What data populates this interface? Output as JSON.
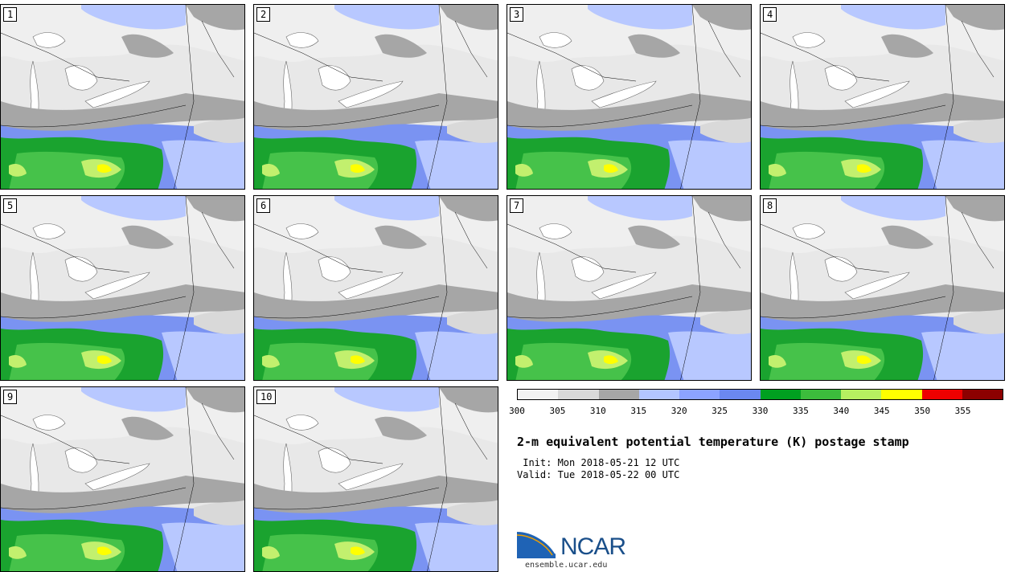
{
  "panels": [
    "1",
    "2",
    "3",
    "4",
    "5",
    "6",
    "7",
    "8",
    "9",
    "10"
  ],
  "colorbar": {
    "colors": [
      "#f2f2f2",
      "#d9d9d9",
      "#a6a6a6",
      "#b3c6ff",
      "#8ca3ff",
      "#6b88f0",
      "#00a020",
      "#3cbc3c",
      "#b6f060",
      "#ffff00",
      "#ee0000",
      "#8c0000"
    ],
    "ticks": [
      "300",
      "305",
      "310",
      "315",
      "320",
      "325",
      "330",
      "335",
      "340",
      "345",
      "350",
      "355"
    ]
  },
  "title": "2-m equivalent potential temperature (K) postage stamp",
  "init_text": " Init: Mon 2018-05-21 12 UTC",
  "valid_text": "Valid: Tue 2018-05-22 00 UTC",
  "logo": {
    "name": "NCAR",
    "site": "ensemble.ucar.edu"
  }
}
